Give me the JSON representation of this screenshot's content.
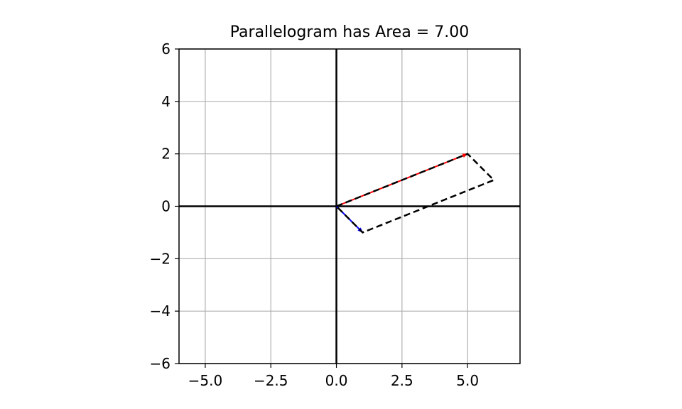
{
  "chart_data": {
    "type": "line",
    "title": "Parallelogram has Area = 7.00",
    "xlabel": "",
    "ylabel": "",
    "xlim": [
      -6,
      7
    ],
    "ylim": [
      -6,
      6
    ],
    "grid": true,
    "x_ticks": [
      {
        "value": -5,
        "label": "−5.0"
      },
      {
        "value": -2.5,
        "label": "−2.5"
      },
      {
        "value": 0,
        "label": "0.0"
      },
      {
        "value": 2.5,
        "label": "2.5"
      },
      {
        "value": 5,
        "label": "5.0"
      }
    ],
    "y_ticks": [
      {
        "value": 6,
        "label": "6"
      },
      {
        "value": 4,
        "label": "4"
      },
      {
        "value": 2,
        "label": "2"
      },
      {
        "value": 0,
        "label": "0"
      },
      {
        "value": -2,
        "label": "−2"
      },
      {
        "value": -4,
        "label": "−4"
      },
      {
        "value": -6,
        "label": "−6"
      }
    ],
    "vectors": [
      {
        "from": [
          0,
          0
        ],
        "to": [
          5,
          2
        ],
        "color": "#ff0000"
      },
      {
        "from": [
          0,
          0
        ],
        "to": [
          1,
          -1
        ],
        "color": "#0000ff"
      }
    ],
    "parallelogram": {
      "points": [
        [
          0,
          0
        ],
        [
          5,
          2
        ],
        [
          6,
          1
        ],
        [
          1,
          -1
        ],
        [
          0,
          0
        ]
      ],
      "color": "#000000",
      "dashed": true
    },
    "axis_lines": {
      "color": "#000000"
    },
    "grid_color": "#b0b0b0"
  }
}
